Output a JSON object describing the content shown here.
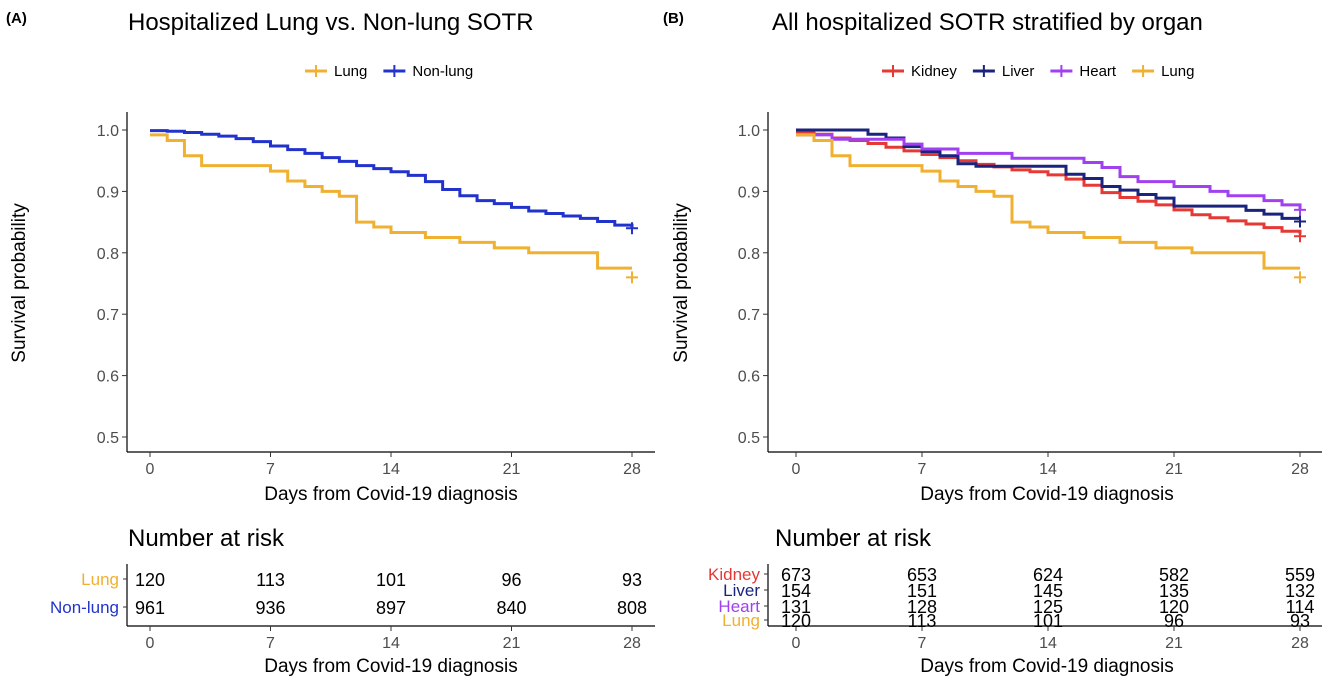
{
  "panels": [
    {
      "tag": "(A)",
      "title": "Hospitalized Lung vs. Non-lung SOTR",
      "ylabel": "Survival probability",
      "xlabel": "Days from Covid-19 diagnosis",
      "risk_title": "Number at risk",
      "risk_xlabel": "Days from Covid-19 diagnosis"
    },
    {
      "tag": "(B)",
      "title": "All hospitalized SOTR stratified by organ",
      "ylabel": "Survival probability",
      "xlabel": "Days from Covid-19 diagnosis",
      "risk_title": "Number at risk",
      "risk_xlabel": "Days from Covid-19 diagnosis"
    }
  ],
  "chart_data": [
    {
      "type": "line",
      "title": "Hospitalized Lung vs. Non-lung SOTR",
      "xlabel": "Days from Covid-19 diagnosis",
      "ylabel": "Survival probability",
      "xlim": [
        0,
        28
      ],
      "ylim": [
        0.5,
        1.0
      ],
      "x_ticks": [
        0,
        7,
        14,
        21,
        28
      ],
      "y_ticks": [
        0.5,
        0.6,
        0.7,
        0.8,
        0.9,
        1.0
      ],
      "y_tick_labels": [
        "0.5",
        "0.6",
        "0.7",
        "0.8",
        "0.9",
        "1.0"
      ],
      "grid": false,
      "legend_position": "top",
      "series": [
        {
          "name": "Lung",
          "color": "#F0B030",
          "step": true,
          "x": [
            0,
            1,
            2,
            3,
            4,
            6,
            7,
            8,
            9,
            10,
            11,
            12,
            13,
            14,
            15,
            16,
            18,
            19,
            20,
            21,
            22,
            26,
            27,
            28
          ],
          "y": [
            0.992,
            0.983,
            0.958,
            0.942,
            0.942,
            0.942,
            0.933,
            0.917,
            0.908,
            0.9,
            0.892,
            0.85,
            0.842,
            0.833,
            0.833,
            0.825,
            0.817,
            0.817,
            0.808,
            0.808,
            0.8,
            0.775,
            0.775,
            0.775
          ]
        },
        {
          "name": "Non-lung",
          "color": "#2233CC",
          "step": true,
          "x": [
            0,
            1,
            2,
            3,
            4,
            5,
            6,
            7,
            8,
            9,
            10,
            11,
            12,
            13,
            14,
            15,
            16,
            17,
            18,
            19,
            20,
            21,
            22,
            23,
            24,
            25,
            26,
            27,
            28
          ],
          "y": [
            0.999,
            0.998,
            0.996,
            0.993,
            0.99,
            0.986,
            0.981,
            0.974,
            0.968,
            0.962,
            0.955,
            0.949,
            0.942,
            0.937,
            0.932,
            0.926,
            0.916,
            0.903,
            0.893,
            0.885,
            0.88,
            0.874,
            0.868,
            0.864,
            0.86,
            0.856,
            0.851,
            0.845,
            0.841
          ]
        }
      ],
      "censor_marks": [
        {
          "series": "Lung",
          "x": 28,
          "y": 0.76
        },
        {
          "series": "Non-lung",
          "x": 28,
          "y": 0.84
        }
      ],
      "risk_table": {
        "title": "Number at risk",
        "xlabel": "Days from Covid-19 diagnosis",
        "times": [
          0,
          7,
          14,
          21,
          28
        ],
        "rows": [
          {
            "label": "Lung",
            "color": "#F0B030",
            "values": [
              "120",
              "113",
              "101",
              "96",
              "93"
            ]
          },
          {
            "label": "Non-lung",
            "color": "#2233CC",
            "values": [
              "961",
              "936",
              "897",
              "840",
              "808"
            ]
          }
        ]
      }
    },
    {
      "type": "line",
      "title": "All hospitalized SOTR stratified by organ",
      "xlabel": "Days from Covid-19 diagnosis",
      "ylabel": "Survival probability",
      "xlim": [
        0,
        28
      ],
      "ylim": [
        0.5,
        1.0
      ],
      "x_ticks": [
        0,
        7,
        14,
        21,
        28
      ],
      "y_ticks": [
        0.5,
        0.6,
        0.7,
        0.8,
        0.9,
        1.0
      ],
      "y_tick_labels": [
        "0.5",
        "0.6",
        "0.7",
        "0.8",
        "0.9",
        "1.0"
      ],
      "grid": false,
      "legend_position": "top",
      "series": [
        {
          "name": "Kidney",
          "color": "#E53935",
          "step": true,
          "x": [
            0,
            1,
            2,
            3,
            4,
            5,
            6,
            7,
            8,
            9,
            10,
            11,
            12,
            13,
            14,
            15,
            16,
            17,
            18,
            19,
            20,
            21,
            22,
            23,
            24,
            25,
            26,
            27,
            28
          ],
          "y": [
            0.997,
            0.993,
            0.987,
            0.983,
            0.978,
            0.972,
            0.966,
            0.96,
            0.955,
            0.95,
            0.944,
            0.94,
            0.935,
            0.932,
            0.927,
            0.92,
            0.91,
            0.898,
            0.89,
            0.884,
            0.878,
            0.87,
            0.862,
            0.857,
            0.852,
            0.847,
            0.841,
            0.835,
            0.83
          ]
        },
        {
          "name": "Liver",
          "color": "#1A237E",
          "step": true,
          "x": [
            0,
            1,
            2,
            3,
            4,
            5,
            6,
            7,
            8,
            9,
            10,
            11,
            12,
            13,
            14,
            15,
            16,
            17,
            18,
            19,
            20,
            21,
            22,
            23,
            24,
            25,
            26,
            27,
            28
          ],
          "y": [
            1.0,
            1.0,
            1.0,
            1.0,
            0.993,
            0.987,
            0.973,
            0.965,
            0.958,
            0.945,
            0.941,
            0.941,
            0.941,
            0.941,
            0.941,
            0.928,
            0.921,
            0.908,
            0.902,
            0.895,
            0.889,
            0.876,
            0.876,
            0.876,
            0.876,
            0.869,
            0.863,
            0.856,
            0.856
          ]
        },
        {
          "name": "Heart",
          "color": "#A040F0",
          "step": true,
          "x": [
            0,
            1,
            2,
            3,
            4,
            5,
            6,
            7,
            8,
            9,
            10,
            11,
            12,
            13,
            14,
            15,
            16,
            17,
            18,
            19,
            20,
            21,
            22,
            23,
            24,
            25,
            26,
            27,
            28
          ],
          "y": [
            0.992,
            0.992,
            0.985,
            0.985,
            0.985,
            0.985,
            0.977,
            0.969,
            0.969,
            0.962,
            0.962,
            0.962,
            0.954,
            0.954,
            0.954,
            0.954,
            0.947,
            0.939,
            0.924,
            0.916,
            0.916,
            0.908,
            0.908,
            0.9,
            0.893,
            0.893,
            0.885,
            0.878,
            0.87
          ]
        },
        {
          "name": "Lung",
          "color": "#F0B030",
          "step": true,
          "x": [
            0,
            1,
            2,
            3,
            4,
            6,
            7,
            8,
            9,
            10,
            11,
            12,
            13,
            14,
            15,
            16,
            18,
            19,
            20,
            21,
            22,
            26,
            27,
            28
          ],
          "y": [
            0.992,
            0.983,
            0.958,
            0.942,
            0.942,
            0.942,
            0.933,
            0.917,
            0.908,
            0.9,
            0.892,
            0.85,
            0.842,
            0.833,
            0.833,
            0.825,
            0.817,
            0.817,
            0.808,
            0.808,
            0.8,
            0.775,
            0.775,
            0.775
          ]
        }
      ],
      "censor_marks": [
        {
          "series": "Kidney",
          "x": 28,
          "y": 0.827
        },
        {
          "series": "Liver",
          "x": 28,
          "y": 0.851
        },
        {
          "series": "Heart",
          "x": 28,
          "y": 0.87
        },
        {
          "series": "Lung",
          "x": 28,
          "y": 0.76
        }
      ],
      "risk_table": {
        "title": "Number at risk",
        "xlabel": "Days from Covid-19 diagnosis",
        "times": [
          0,
          7,
          14,
          21,
          28
        ],
        "rows": [
          {
            "label": "Kidney",
            "color": "#E53935",
            "values": [
              "673",
              "653",
              "624",
              "582",
              "559"
            ]
          },
          {
            "label": "Liver",
            "color": "#1A237E",
            "values": [
              "154",
              "151",
              "145",
              "135",
              "132"
            ]
          },
          {
            "label": "Heart",
            "color": "#A040F0",
            "values": [
              "131",
              "128",
              "125",
              "120",
              "114"
            ]
          },
          {
            "label": "Lung",
            "color": "#F0B030",
            "values": [
              "120",
              "113",
              "101",
              "96",
              "93"
            ]
          }
        ]
      }
    }
  ]
}
